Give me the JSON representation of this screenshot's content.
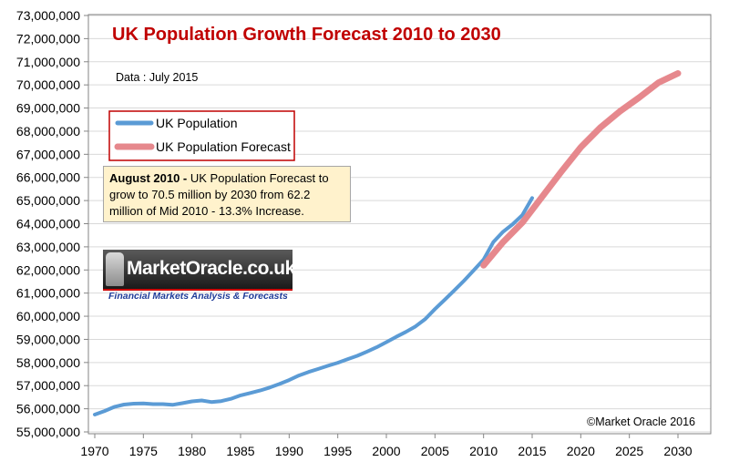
{
  "chart_data": {
    "type": "line",
    "title": "UK Population Growth Forecast 2010 to 2030",
    "subtitle": "Data : July 2015",
    "credit": "©Market Oracle 2016",
    "xlabel": "",
    "ylabel": "",
    "xlim": [
      1970,
      2030
    ],
    "ylim": [
      55000000,
      73000000
    ],
    "x_ticks": [
      "1970",
      "1975",
      "1980",
      "1985",
      "1990",
      "1995",
      "2000",
      "2005",
      "2010",
      "2015",
      "2020",
      "2025",
      "2030"
    ],
    "y_ticks": [
      "55,000,000",
      "56,000,000",
      "57,000,000",
      "58,000,000",
      "59,000,000",
      "60,000,000",
      "61,000,000",
      "62,000,000",
      "63,000,000",
      "64,000,000",
      "65,000,000",
      "66,000,000",
      "67,000,000",
      "68,000,000",
      "69,000,000",
      "70,000,000",
      "71,000,000",
      "72,000,000",
      "73,000,000"
    ],
    "grid": true,
    "legend_position": "upper-left",
    "series": [
      {
        "name": "UK Population",
        "color": "#5b9bd5",
        "x": [
          1970,
          1971,
          1972,
          1973,
          1974,
          1975,
          1976,
          1977,
          1978,
          1979,
          1980,
          1981,
          1982,
          1983,
          1984,
          1985,
          1986,
          1987,
          1988,
          1989,
          1990,
          1991,
          1992,
          1993,
          1994,
          1995,
          1996,
          1997,
          1998,
          1999,
          2000,
          2001,
          2002,
          2003,
          2004,
          2005,
          2006,
          2007,
          2008,
          2009,
          2010,
          2011,
          2012,
          2013,
          2014,
          2015
        ],
        "values": [
          55750000,
          55900000,
          56080000,
          56180000,
          56220000,
          56230000,
          56200000,
          56200000,
          56170000,
          56240000,
          56320000,
          56360000,
          56290000,
          56330000,
          56430000,
          56580000,
          56680000,
          56790000,
          56920000,
          57070000,
          57240000,
          57440000,
          57590000,
          57720000,
          57860000,
          57990000,
          58140000,
          58290000,
          58470000,
          58660000,
          58880000,
          59110000,
          59320000,
          59560000,
          59880000,
          60310000,
          60710000,
          61120000,
          61540000,
          61990000,
          62450000,
          63200000,
          63650000,
          63980000,
          64380000,
          65110000
        ]
      },
      {
        "name": "UK Population Forecast",
        "color": "#e6888d",
        "x": [
          2010,
          2012,
          2014,
          2016,
          2018,
          2020,
          2022,
          2024,
          2026,
          2028,
          2030
        ],
        "values": [
          62200000,
          63200000,
          64050000,
          65150000,
          66250000,
          67300000,
          68150000,
          68850000,
          69450000,
          70100000,
          70500000
        ]
      }
    ],
    "annotations": {
      "callout_bold": "August 2010 -",
      "callout_lines": [
        "UK Population Forecast to",
        "grow to 70.5  million by 2030 from 62.2",
        "million of Mid 2010 - 13.3% Increase."
      ]
    }
  },
  "logo": {
    "name": "MarketOracle.co.uk",
    "tagline": "Financial Markets Analysis & Forecasts"
  }
}
